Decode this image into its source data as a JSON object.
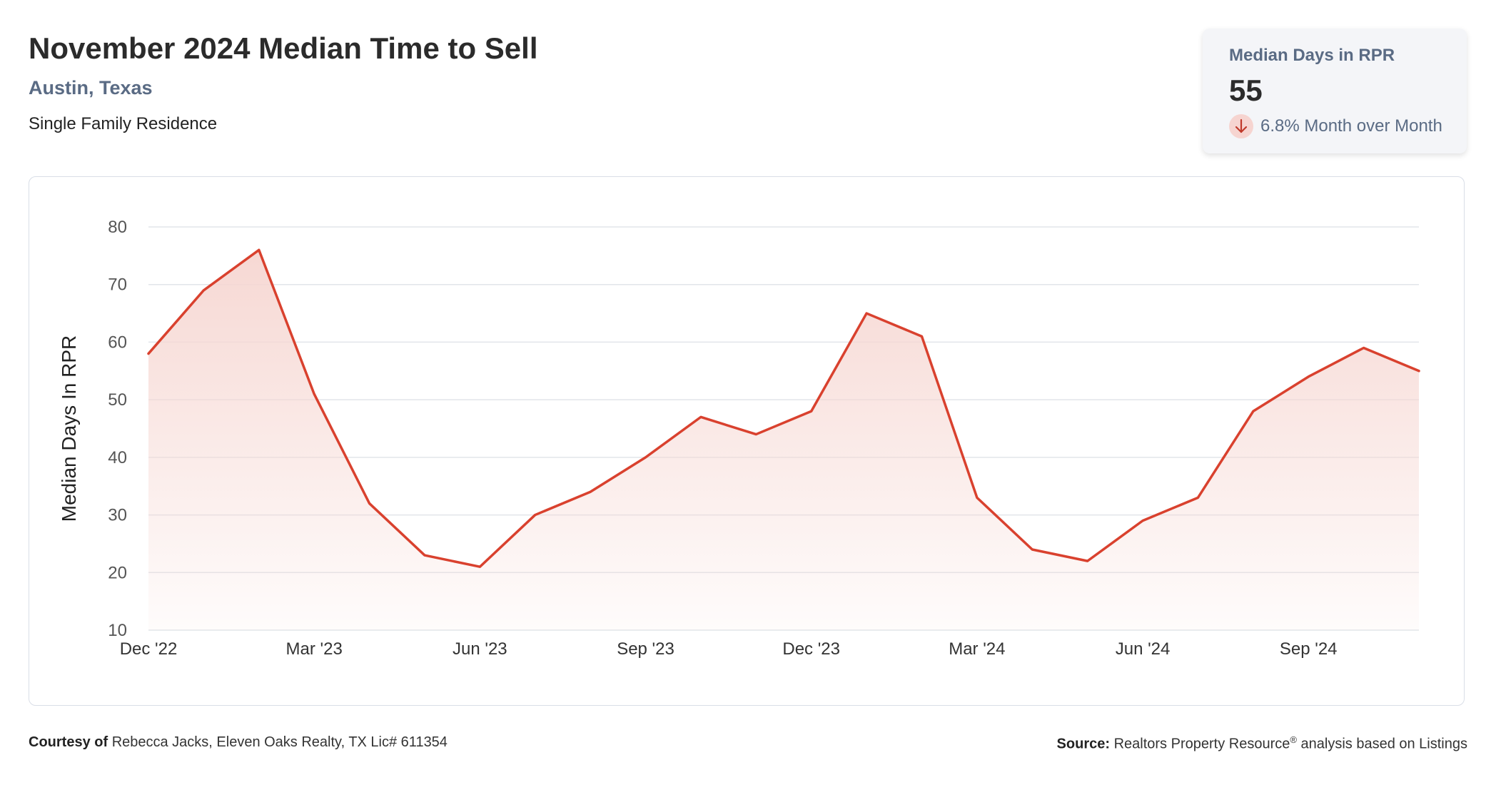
{
  "header": {
    "title": "November 2024 Median Time to Sell",
    "location": "Austin, Texas",
    "property_type": "Single Family Residence"
  },
  "stat": {
    "label": "Median Days in RPR",
    "value": "55",
    "change": "6.8% Month over Month",
    "direction_icon": "arrow-down-icon"
  },
  "footer": {
    "courtesy_label": "Courtesy of",
    "courtesy_text": "Rebecca Jacks, Eleven Oaks Realty, TX Lic# 611354",
    "source_label": "Source:",
    "source_text_1": "Realtors Property Resource",
    "source_reg": "®",
    "source_text_2": " analysis based on Listings"
  },
  "colors": {
    "line": "#d9412e",
    "fill_top": "#f6d6d1",
    "grid": "#e2e5ea",
    "accent_text": "#5a6b84"
  },
  "chart_data": {
    "type": "area",
    "title": "",
    "xlabel": "",
    "ylabel": "Median Days In RPR",
    "ylim": [
      10,
      80
    ],
    "yticks": [
      10,
      20,
      30,
      40,
      50,
      60,
      70,
      80
    ],
    "grid": true,
    "x": [
      "Dec '22",
      "Jan '23",
      "Feb '23",
      "Mar '23",
      "Apr '23",
      "May '23",
      "Jun '23",
      "Jul '23",
      "Aug '23",
      "Sep '23",
      "Oct '23",
      "Nov '23",
      "Dec '23",
      "Jan '24",
      "Feb '24",
      "Mar '24",
      "Apr '24",
      "May '24",
      "Jun '24",
      "Jul '24",
      "Aug '24",
      "Sep '24",
      "Oct '24",
      "Nov '24"
    ],
    "xtick_labels": [
      "Dec '22",
      "Mar '23",
      "Jun '23",
      "Sep '23",
      "Dec '23",
      "Mar '24",
      "Jun '24",
      "Sep '24"
    ],
    "values": [
      58,
      69,
      76,
      51,
      32,
      23,
      21,
      30,
      34,
      40,
      47,
      44,
      48,
      65,
      61,
      33,
      24,
      22,
      29,
      33,
      48,
      54,
      59,
      55
    ]
  }
}
